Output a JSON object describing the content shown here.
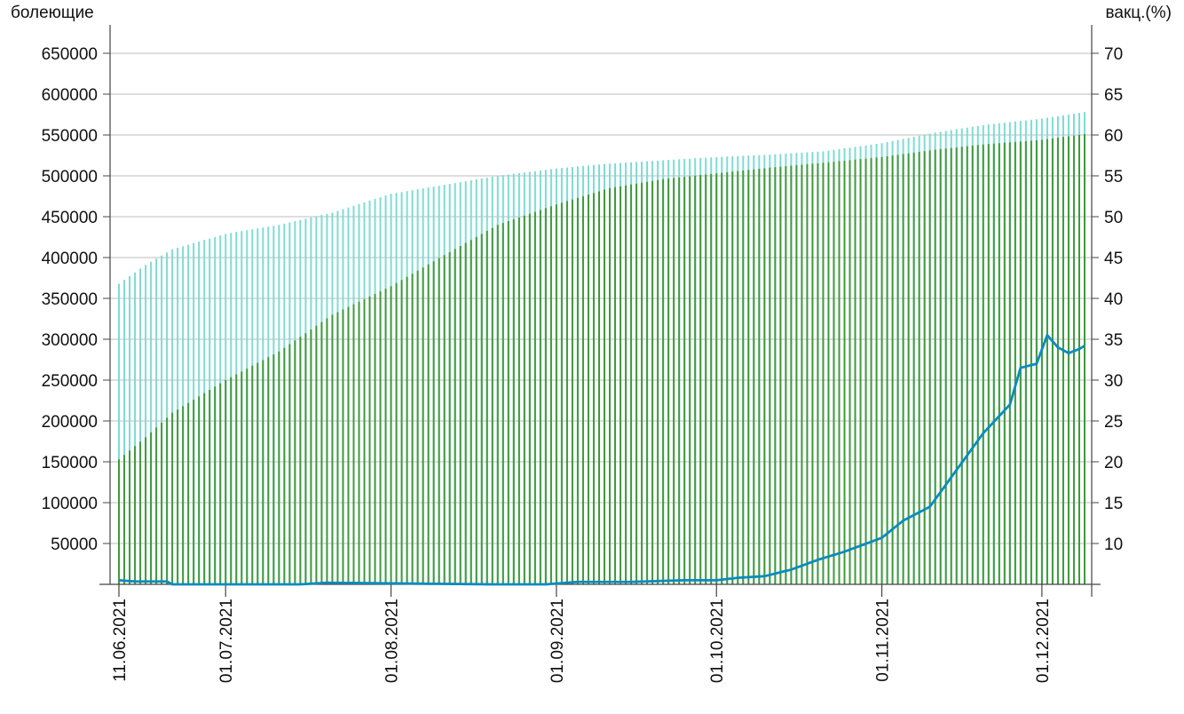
{
  "chart_data": {
    "type": "bar",
    "left_axis": {
      "label": "болеющие",
      "ticks": [
        50000,
        100000,
        150000,
        200000,
        250000,
        300000,
        350000,
        400000,
        450000,
        500000,
        550000,
        600000,
        650000
      ],
      "ylim": [
        0,
        700000
      ]
    },
    "right_axis": {
      "label": "вакц.(%)",
      "ticks": [
        10,
        15,
        20,
        25,
        30,
        35,
        40,
        45,
        50,
        55,
        60,
        65,
        70
      ],
      "ylim": [
        5,
        75
      ]
    },
    "x_axis": {
      "start_date": "11.06.2021",
      "end_date": "09.12.2021",
      "tick_labels": [
        "11.06.2021",
        "01.07.2021",
        "01.08.2021",
        "01.09.2021",
        "01.10.2021",
        "01.11.2021",
        "01.12.2021"
      ]
    },
    "grid": true,
    "series": [
      {
        "kind": "bar",
        "axis": "right",
        "color": "#7fdbd5",
        "key_dates": [
          "11.06.2021",
          "16.06.2021",
          "21.06.2021",
          "01.07.2021",
          "11.07.2021",
          "21.07.2021",
          "01.08.2021",
          "11.08.2021",
          "21.08.2021",
          "01.09.2021",
          "11.09.2021",
          "21.09.2021",
          "01.10.2021",
          "11.10.2021",
          "21.10.2021",
          "01.11.2021",
          "11.11.2021",
          "21.11.2021",
          "01.12.2021",
          "09.12.2021"
        ],
        "key_values": [
          41.8,
          44.1,
          46.0,
          47.9,
          49.0,
          50.5,
          52.8,
          53.9,
          55.0,
          55.9,
          56.5,
          56.9,
          57.3,
          57.6,
          58.0,
          59.0,
          60.3,
          61.3,
          62.0,
          62.8
        ]
      },
      {
        "kind": "bar",
        "axis": "right",
        "color": "#3f9a3c",
        "key_dates": [
          "11.06.2021",
          "16.06.2021",
          "21.06.2021",
          "01.07.2021",
          "11.07.2021",
          "21.07.2021",
          "01.08.2021",
          "11.08.2021",
          "21.08.2021",
          "01.09.2021",
          "11.09.2021",
          "21.09.2021",
          "01.10.2021",
          "11.10.2021",
          "21.10.2021",
          "01.11.2021",
          "11.11.2021",
          "21.11.2021",
          "01.12.2021",
          "09.12.2021"
        ],
        "key_values": [
          20.3,
          23.0,
          26.0,
          30.0,
          33.5,
          38.0,
          41.5,
          45.3,
          49.0,
          51.5,
          53.5,
          54.6,
          55.3,
          56.0,
          56.6,
          57.3,
          58.2,
          58.9,
          59.4,
          60.1
        ]
      },
      {
        "kind": "line",
        "axis": "left",
        "color": "#0b8bbf",
        "key_dates": [
          "11.06.2021",
          "14.06.2021",
          "20.06.2021",
          "21.06.2021",
          "15.07.2021",
          "20.07.2021",
          "20.08.2021",
          "30.08.2021",
          "05.09.2021",
          "15.09.2021",
          "25.09.2021",
          "01.10.2021",
          "05.10.2021",
          "10.10.2021",
          "15.10.2021",
          "20.10.2021",
          "25.10.2021",
          "01.11.2021",
          "05.11.2021",
          "10.11.2021",
          "15.11.2021",
          "20.11.2021",
          "25.11.2021",
          "27.11.2021",
          "30.11.2021",
          "02.12.2021",
          "04.12.2021",
          "06.12.2021",
          "08.12.2021",
          "09.12.2021"
        ],
        "key_values": [
          5000,
          3500,
          3500,
          0,
          0,
          2000,
          0,
          0,
          3000,
          3000,
          5000,
          5000,
          8000,
          10000,
          18000,
          30000,
          40000,
          57000,
          78000,
          95000,
          140000,
          185000,
          220000,
          265000,
          270000,
          305000,
          290000,
          283000,
          288000,
          292000
        ]
      }
    ]
  }
}
